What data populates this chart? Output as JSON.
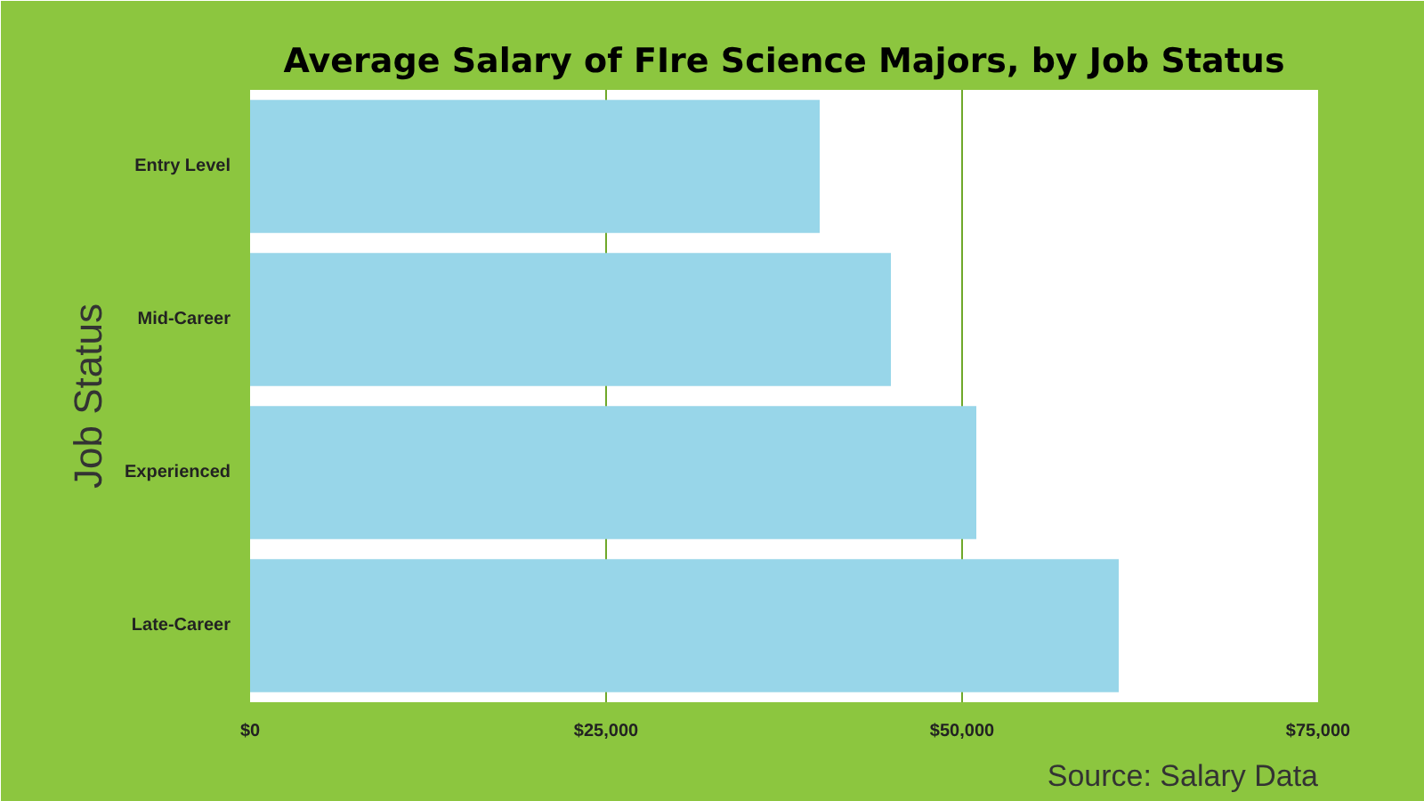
{
  "chart_data": {
    "type": "bar",
    "orientation": "horizontal",
    "title": "Average Salary of FIre Science Majors, by Job Status",
    "ylabel": "Job Status",
    "categories": [
      "Entry Level",
      "Mid-Career",
      "Experienced",
      "Late-Career"
    ],
    "values": [
      40000,
      45000,
      51000,
      61000
    ],
    "color": "#98d6e9",
    "xlim": [
      0,
      75000
    ],
    "xticks": [
      {
        "value": 0,
        "label": "$0"
      },
      {
        "value": 25000,
        "label": "$25,000"
      },
      {
        "value": 50000,
        "label": "$50,000"
      },
      {
        "value": 75000,
        "label": "$75,000"
      }
    ],
    "grid": "x",
    "annotations": [
      "Source: Salary Data"
    ]
  }
}
